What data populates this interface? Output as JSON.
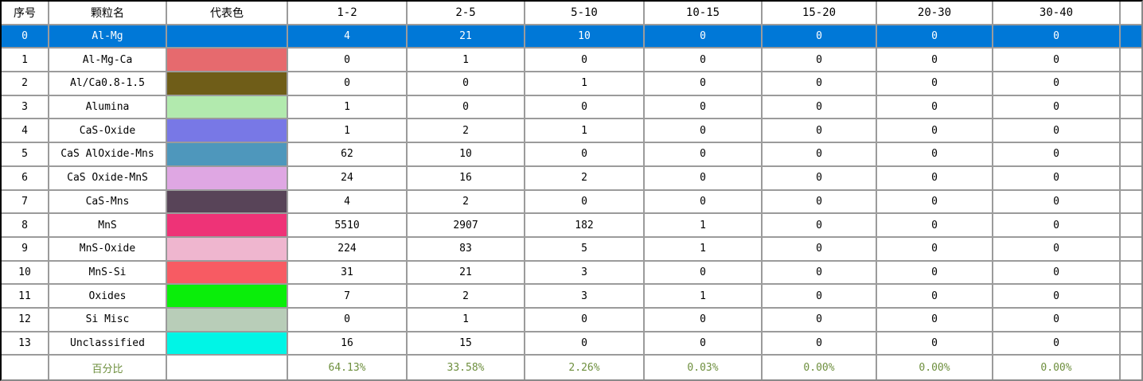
{
  "table": {
    "columns": [
      "序号",
      "颗粒名",
      "代表色",
      "1-2",
      "2-5",
      "5-10",
      "10-15",
      "15-20",
      "20-30",
      "30-40"
    ],
    "selected_row_index": 0,
    "rows": [
      {
        "index": "0",
        "name": "Al-Mg",
        "color": null,
        "values": [
          "4",
          "21",
          "10",
          "0",
          "0",
          "0",
          "0"
        ]
      },
      {
        "index": "1",
        "name": "Al-Mg-Ca",
        "color": "#e66a6e",
        "values": [
          "0",
          "1",
          "0",
          "0",
          "0",
          "0",
          "0"
        ]
      },
      {
        "index": "2",
        "name": "Al/Ca0.8-1.5",
        "color": "#6f5d18",
        "values": [
          "0",
          "0",
          "1",
          "0",
          "0",
          "0",
          "0"
        ]
      },
      {
        "index": "3",
        "name": "Alumina",
        "color": "#b2eaae",
        "values": [
          "1",
          "0",
          "0",
          "0",
          "0",
          "0",
          "0"
        ]
      },
      {
        "index": "4",
        "name": "CaS-Oxide",
        "color": "#7878e6",
        "values": [
          "1",
          "2",
          "1",
          "0",
          "0",
          "0",
          "0"
        ]
      },
      {
        "index": "5",
        "name": "CaS AlOxide-Mns",
        "color": "#4e97bc",
        "values": [
          "62",
          "10",
          "0",
          "0",
          "0",
          "0",
          "0"
        ]
      },
      {
        "index": "6",
        "name": "CaS Oxide-MnS",
        "color": "#dfa7e3",
        "values": [
          "24",
          "16",
          "2",
          "0",
          "0",
          "0",
          "0"
        ]
      },
      {
        "index": "7",
        "name": "CaS-Mns",
        "color": "#584458",
        "values": [
          "4",
          "2",
          "0",
          "0",
          "0",
          "0",
          "0"
        ]
      },
      {
        "index": "8",
        "name": "MnS",
        "color": "#ee3377",
        "values": [
          "5510",
          "2907",
          "182",
          "1",
          "0",
          "0",
          "0"
        ]
      },
      {
        "index": "9",
        "name": "MnS-Oxide",
        "color": "#efb6cf",
        "values": [
          "224",
          "83",
          "5",
          "1",
          "0",
          "0",
          "0"
        ]
      },
      {
        "index": "10",
        "name": "MnS-Si",
        "color": "#f75b63",
        "values": [
          "31",
          "21",
          "3",
          "0",
          "0",
          "0",
          "0"
        ]
      },
      {
        "index": "11",
        "name": "Oxides",
        "color": "#0aee0a",
        "values": [
          "7",
          "2",
          "3",
          "1",
          "0",
          "0",
          "0"
        ]
      },
      {
        "index": "12",
        "name": "Si Misc",
        "color": "#b8cdb8",
        "values": [
          "0",
          "1",
          "0",
          "0",
          "0",
          "0",
          "0"
        ]
      },
      {
        "index": "13",
        "name": "Unclassified",
        "color": "#00f5e6",
        "values": [
          "16",
          "15",
          "0",
          "0",
          "0",
          "0",
          "0"
        ]
      }
    ],
    "summary": {
      "label": "百分比",
      "values": [
        "64.13%",
        "33.58%",
        "2.26%",
        "0.03%",
        "0.00%",
        "0.00%",
        "0.00%"
      ]
    },
    "colors": {
      "selection_background": "#0078d7",
      "selection_text": "#ffffff",
      "grid_line": "#9b9b9b",
      "summary_text": "#6e8f3e",
      "header_text": "#000000",
      "outer_border_dark": "#000000"
    }
  }
}
